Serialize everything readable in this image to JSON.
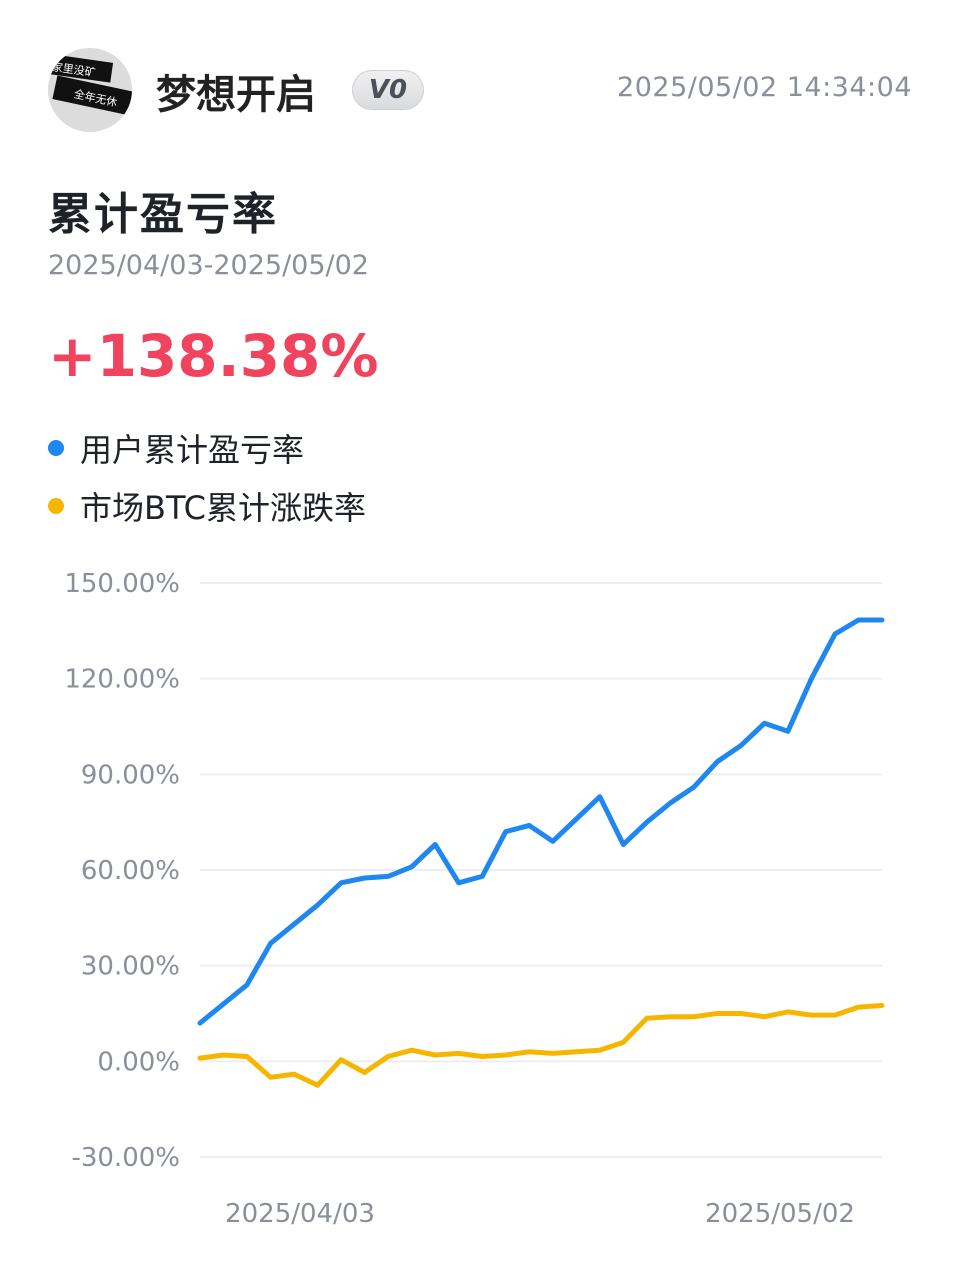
{
  "header": {
    "username": "梦想开启",
    "level_badge": "V0",
    "timestamp": "2025/05/02 14:34:04",
    "avatar_text_top": "家里没矿",
    "avatar_text_bottom": "全年无休"
  },
  "summary": {
    "title": "累计盈亏率",
    "date_range": "2025/04/03-2025/05/02",
    "value": "+138.38%"
  },
  "colors": {
    "user_series": "#1e88f0",
    "btc_series": "#f6b600",
    "positive": "#f0445e",
    "grid": "#eceef1",
    "axis_text": "#8a8f99"
  },
  "chart_data": {
    "type": "line",
    "x_start_label": "2025/04/03",
    "x_end_label": "2025/05/02",
    "ylim": [
      -30,
      150
    ],
    "yticks": [
      "150.00%",
      "120.00%",
      "90.00%",
      "60.00%",
      "30.00%",
      "0.00%",
      "-30.00%"
    ],
    "ytick_values": [
      150,
      120,
      90,
      60,
      30,
      0,
      -30
    ],
    "grid": true,
    "legend": "top-left",
    "series": [
      {
        "name": "用户累计盈亏率",
        "color": "#1e88f0",
        "values": [
          12,
          18,
          24,
          37,
          43,
          49,
          56,
          57.5,
          58,
          61,
          68,
          56,
          58,
          72,
          74,
          69,
          76,
          83,
          68,
          75,
          81,
          86,
          94,
          99,
          106,
          103.5,
          120,
          134,
          138.4,
          138.4
        ]
      },
      {
        "name": "市场BTC累计涨跌率",
        "color": "#f6b600",
        "values": [
          1,
          2,
          1.5,
          -5,
          -4,
          -7.5,
          0.5,
          -3.5,
          1.5,
          3.5,
          2,
          2.5,
          1.5,
          2,
          3,
          2.5,
          3,
          3.5,
          6,
          13.5,
          14,
          14,
          15,
          15,
          14,
          15.5,
          14.5,
          14.5,
          17,
          17.5
        ]
      }
    ]
  }
}
